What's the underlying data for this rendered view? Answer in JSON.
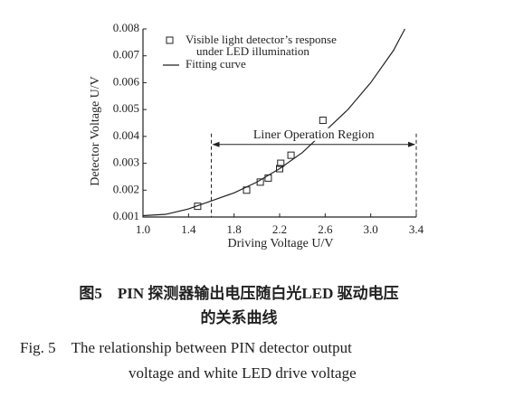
{
  "chart_data": {
    "type": "scatter-fit",
    "xlabel": "Driving Voltage U/V",
    "ylabel": "Detector Voltage U/V",
    "xlim": [
      1.0,
      3.4
    ],
    "ylim": [
      0.001,
      0.008
    ],
    "xticks": [
      {
        "value": 1,
        "label": "1.0"
      },
      1.4,
      1.8,
      2.2,
      2.6,
      {
        "value": 3,
        "label": "3.0"
      },
      3.4
    ],
    "yticks": [
      0.001,
      0.002,
      0.003,
      0.004,
      0.005,
      0.006,
      0.007,
      0.008
    ],
    "series": [
      {
        "name": "Visible light detector’s response\nunder LED illumination",
        "type": "scatter",
        "color": "#222222",
        "x": [
          1.48,
          1.91,
          2.03,
          2.1,
          2.2,
          2.21,
          2.3,
          2.58
        ],
        "values": [
          0.0014,
          0.002,
          0.0023,
          0.00245,
          0.0028,
          0.003,
          0.0033,
          0.0046
        ]
      },
      {
        "name": "Fitting curve",
        "type": "line",
        "color": "#222222",
        "x": [
          1.0,
          1.2,
          1.4,
          1.6,
          1.8,
          2.0,
          2.2,
          2.4,
          2.6,
          2.8,
          3.0,
          3.2,
          3.3
        ],
        "values": [
          0.00105,
          0.0011,
          0.0013,
          0.0016,
          0.0019,
          0.0023,
          0.0028,
          0.0034,
          0.0042,
          0.005,
          0.006,
          0.0072,
          0.008
        ]
      }
    ],
    "region": {
      "label": "Liner Operation Region",
      "x": [
        1.6,
        3.4
      ],
      "y": 0.0037
    }
  },
  "caption": {
    "cn": [
      "图5　PIN 探测器输出电压随白光LED 驱动电压",
      "的关系曲线"
    ],
    "en": [
      "Fig. 5　The relationship between PIN detector output",
      "voltage and white LED drive voltage"
    ]
  }
}
